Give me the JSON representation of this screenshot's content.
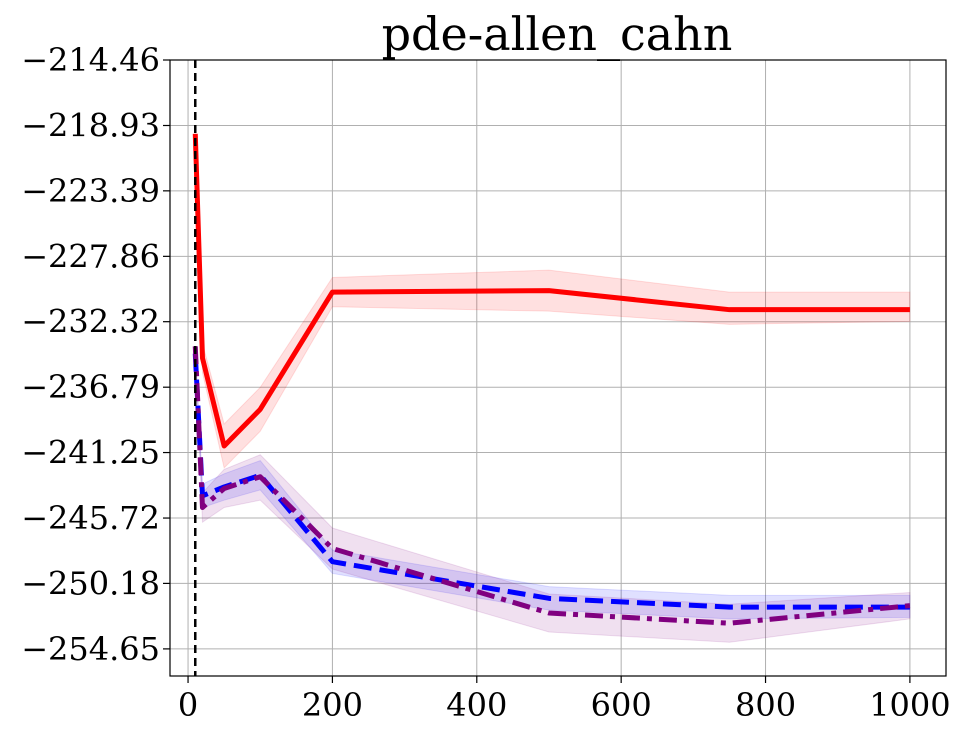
{
  "chart_data": {
    "type": "line",
    "title": "pde-allen_cahn",
    "xlabel": "",
    "ylabel": "",
    "xlim": [
      -25,
      1050
    ],
    "ylim": [
      -256.5,
      -214.46
    ],
    "xticks": [
      0,
      200,
      400,
      600,
      800,
      1000
    ],
    "xtick_labels": [
      "0",
      "200",
      "400",
      "600",
      "800",
      "1000"
    ],
    "yticks": [
      -214.46,
      -218.93,
      -223.39,
      -227.86,
      -232.32,
      -236.79,
      -241.25,
      -245.72,
      -250.18,
      -254.65
    ],
    "ytick_labels": [
      "−214.46",
      "−218.93",
      "−223.39",
      "−227.86",
      "−232.32",
      "−236.79",
      "−241.25",
      "−245.72",
      "−250.18",
      "−254.65"
    ],
    "grid": true,
    "vline_x": 10,
    "x": [
      10,
      20,
      50,
      100,
      200,
      500,
      750,
      1000
    ],
    "series": [
      {
        "color": "#ff0000",
        "style": "solid",
        "values": [
          -219.5,
          -234.8,
          -240.8,
          -238.3,
          -230.3,
          -230.2,
          -231.5,
          -231.5
        ],
        "lower": [
          -219.5,
          -235.8,
          -242.3,
          -239.8,
          -231.3,
          -231.6,
          -232.5,
          -232.3
        ],
        "upper": [
          -219.5,
          -233.8,
          -239.3,
          -236.8,
          -229.3,
          -228.8,
          -230.3,
          -230.3
        ]
      },
      {
        "color": "#0000ff",
        "style": "dashed",
        "values": [
          -234.5,
          -244.2,
          -243.6,
          -242.8,
          -248.7,
          -251.2,
          -251.8,
          -251.8
        ],
        "lower": [
          -234.5,
          -245.0,
          -244.5,
          -243.8,
          -249.5,
          -252.0,
          -252.6,
          -252.5
        ],
        "upper": [
          -234.5,
          -243.4,
          -242.7,
          -241.8,
          -247.9,
          -250.4,
          -251.0,
          -251.0
        ]
      },
      {
        "color": "#800080",
        "style": "dashdot",
        "values": [
          -234.0,
          -245.0,
          -243.7,
          -242.9,
          -247.8,
          -252.2,
          -252.9,
          -251.7
        ],
        "lower": [
          -234.0,
          -246.0,
          -245.0,
          -244.5,
          -249.2,
          -253.5,
          -254.2,
          -252.6
        ],
        "upper": [
          -234.0,
          -244.0,
          -242.4,
          -241.4,
          -246.4,
          -250.9,
          -251.6,
          -250.8
        ]
      }
    ]
  }
}
